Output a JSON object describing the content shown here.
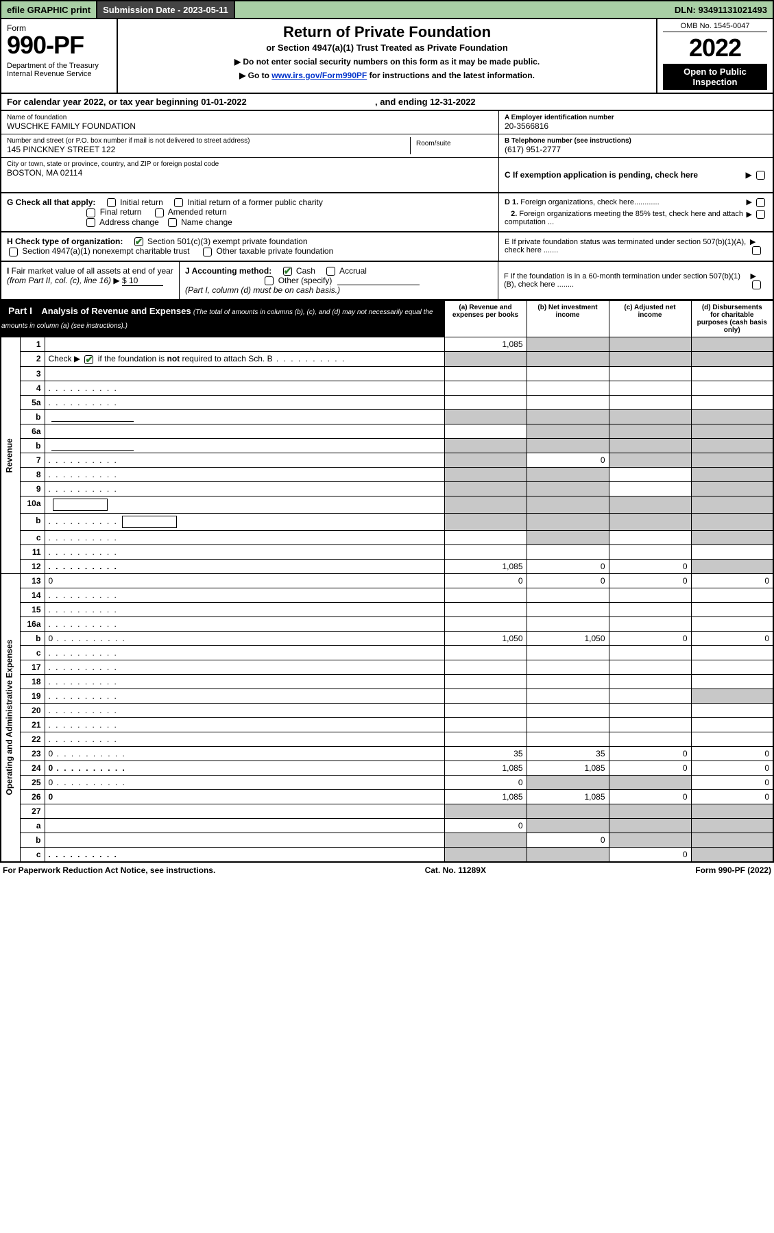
{
  "colors": {
    "topbar_bg": "#a9cfa5",
    "dark_bg": "#444444",
    "black": "#000000",
    "white": "#ffffff",
    "shaded": "#c8c8c8",
    "check_green": "#2a7a2a",
    "link": "#0033cc"
  },
  "topbar": {
    "efile": "efile GRAPHIC print",
    "subdate": "Submission Date - 2023-05-11",
    "dln": "DLN: 93491131021493"
  },
  "header": {
    "form_label": "Form",
    "form_num": "990-PF",
    "dept": "Department of the Treasury\nInternal Revenue Service",
    "title": "Return of Private Foundation",
    "subtitle": "or Section 4947(a)(1) Trust Treated as Private Foundation",
    "instr1": "▶ Do not enter social security numbers on this form as it may be made public.",
    "instr2_pre": "▶ Go to ",
    "instr2_link": "www.irs.gov/Form990PF",
    "instr2_post": " for instructions and the latest information.",
    "omb": "OMB No. 1545-0047",
    "year": "2022",
    "open": "Open to Public Inspection"
  },
  "calendar": {
    "text_pre": "For calendar year 2022, or tax year beginning ",
    "begin": "01-01-2022",
    "mid": " , and ending ",
    "end": "12-31-2022"
  },
  "info": {
    "name_label": "Name of foundation",
    "name": "WUSCHKE FAMILY FOUNDATION",
    "addr_label": "Number and street (or P.O. box number if mail is not delivered to street address)",
    "addr": "145 PINCKNEY STREET 122",
    "room_label": "Room/suite",
    "city_label": "City or town, state or province, country, and ZIP or foreign postal code",
    "city": "BOSTON, MA  02114",
    "ein_label": "A Employer identification number",
    "ein": "20-3566816",
    "phone_label": "B Telephone number (see instructions)",
    "phone": "(617) 951-2777",
    "c_label": "C If exemption application is pending, check here"
  },
  "checks": {
    "g_label": "G Check all that apply:",
    "g_opts": [
      "Initial return",
      "Initial return of a former public charity",
      "Final return",
      "Amended return",
      "Address change",
      "Name change"
    ],
    "h_label": "H Check type of organization:",
    "h_opt1": "Section 501(c)(3) exempt private foundation",
    "h_opt2": "Section 4947(a)(1) nonexempt charitable trust",
    "h_opt3": "Other taxable private foundation",
    "d1": "D 1. Foreign organizations, check here............",
    "d2": "2. Foreign organizations meeting the 85% test, check here and attach computation ...",
    "e": "E  If private foundation status was terminated under section 507(b)(1)(A), check here .......",
    "i_label": "I Fair market value of all assets at end of year (from Part II, col. (c), line 16)",
    "i_val": "$  10",
    "j_label": "J Accounting method:",
    "j_cash": "Cash",
    "j_accrual": "Accrual",
    "j_other": "Other (specify)",
    "j_note": "(Part I, column (d) must be on cash basis.)",
    "f": "F  If the foundation is in a 60-month termination under section 507(b)(1)(B), check here ........"
  },
  "part1": {
    "label": "Part I",
    "title": "Analysis of Revenue and Expenses",
    "note": "(The total of amounts in columns (b), (c), and (d) may not necessarily equal the amounts in column (a) (see instructions).)",
    "col_a": "(a)  Revenue and expenses per books",
    "col_b": "(b)  Net investment income",
    "col_c": "(c)  Adjusted net income",
    "col_d": "(d)  Disbursements for charitable purposes (cash basis only)",
    "side_rev": "Revenue",
    "side_exp": "Operating and Administrative Expenses",
    "rows": [
      {
        "n": "1",
        "d": "",
        "a": "1,085",
        "b": "",
        "c": "",
        "shade": [
          "b",
          "c",
          "d"
        ]
      },
      {
        "n": "2",
        "d": "",
        "a": "",
        "b": "",
        "c": "",
        "full_shade": true,
        "dots": true
      },
      {
        "n": "3",
        "d": "",
        "a": "",
        "b": "",
        "c": ""
      },
      {
        "n": "4",
        "d": "",
        "a": "",
        "b": "",
        "c": "",
        "dots": true
      },
      {
        "n": "5a",
        "d": "",
        "a": "",
        "b": "",
        "c": "",
        "dots": true
      },
      {
        "n": "b",
        "d": "",
        "a": "",
        "b": "",
        "c": "",
        "inline_line": true,
        "shade": [
          "a",
          "b",
          "c",
          "d"
        ]
      },
      {
        "n": "6a",
        "d": "",
        "a": "",
        "b": "",
        "c": "",
        "shade": [
          "b",
          "c",
          "d"
        ]
      },
      {
        "n": "b",
        "d": "",
        "a": "",
        "b": "",
        "c": "",
        "inline_line": true,
        "shade": [
          "a",
          "b",
          "c",
          "d"
        ]
      },
      {
        "n": "7",
        "d": "",
        "a": "",
        "b": "0",
        "c": "",
        "dots": true,
        "shade": [
          "a",
          "c",
          "d"
        ]
      },
      {
        "n": "8",
        "d": "",
        "a": "",
        "b": "",
        "c": "",
        "dots": true,
        "shade": [
          "a",
          "b",
          "d"
        ]
      },
      {
        "n": "9",
        "d": "",
        "a": "",
        "b": "",
        "c": "",
        "dots": true,
        "shade": [
          "a",
          "b",
          "d"
        ]
      },
      {
        "n": "10a",
        "d": "",
        "a": "",
        "b": "",
        "c": "",
        "inline_box": true,
        "shade": [
          "a",
          "b",
          "c",
          "d"
        ]
      },
      {
        "n": "b",
        "d": "",
        "a": "",
        "b": "",
        "c": "",
        "dots": true,
        "inline_box": true,
        "shade": [
          "a",
          "b",
          "c",
          "d"
        ]
      },
      {
        "n": "c",
        "d": "",
        "a": "",
        "b": "",
        "c": "",
        "dots": true,
        "shade": [
          "b",
          "d"
        ]
      },
      {
        "n": "11",
        "d": "",
        "a": "",
        "b": "",
        "c": "",
        "dots": true
      },
      {
        "n": "12",
        "d": "",
        "a": "1,085",
        "b": "0",
        "c": "0",
        "bold": true,
        "dots": true,
        "shade": [
          "d"
        ]
      }
    ],
    "exp_rows": [
      {
        "n": "13",
        "d": "0",
        "a": "0",
        "b": "0",
        "c": "0"
      },
      {
        "n": "14",
        "d": "",
        "a": "",
        "b": "",
        "c": "",
        "dots": true
      },
      {
        "n": "15",
        "d": "",
        "a": "",
        "b": "",
        "c": "",
        "dots": true
      },
      {
        "n": "16a",
        "d": "",
        "a": "",
        "b": "",
        "c": "",
        "dots": true
      },
      {
        "n": "b",
        "d": "0",
        "a": "1,050",
        "b": "1,050",
        "c": "0",
        "dots": true
      },
      {
        "n": "c",
        "d": "",
        "a": "",
        "b": "",
        "c": "",
        "dots": true
      },
      {
        "n": "17",
        "d": "",
        "a": "",
        "b": "",
        "c": "",
        "dots": true
      },
      {
        "n": "18",
        "d": "",
        "a": "",
        "b": "",
        "c": "",
        "dots": true
      },
      {
        "n": "19",
        "d": "",
        "a": "",
        "b": "",
        "c": "",
        "dots": true,
        "shade": [
          "d"
        ]
      },
      {
        "n": "20",
        "d": "",
        "a": "",
        "b": "",
        "c": "",
        "dots": true
      },
      {
        "n": "21",
        "d": "",
        "a": "",
        "b": "",
        "c": "",
        "dots": true
      },
      {
        "n": "22",
        "d": "",
        "a": "",
        "b": "",
        "c": "",
        "dots": true
      },
      {
        "n": "23",
        "d": "0",
        "a": "35",
        "b": "35",
        "c": "0",
        "dots": true
      },
      {
        "n": "24",
        "d": "0",
        "a": "1,085",
        "b": "1,085",
        "c": "0",
        "bold": true,
        "dots": true
      },
      {
        "n": "25",
        "d": "0",
        "a": "0",
        "b": "",
        "c": "",
        "dots": true,
        "shade": [
          "b",
          "c"
        ]
      },
      {
        "n": "26",
        "d": "0",
        "a": "1,085",
        "b": "1,085",
        "c": "0",
        "bold": true
      },
      {
        "n": "27",
        "d": "",
        "a": "",
        "b": "",
        "c": "",
        "shade": [
          "a",
          "b",
          "c",
          "d"
        ]
      },
      {
        "n": "a",
        "d": "",
        "a": "0",
        "b": "",
        "c": "",
        "bold": true,
        "shade": [
          "b",
          "c",
          "d"
        ]
      },
      {
        "n": "b",
        "d": "",
        "a": "",
        "b": "0",
        "c": "",
        "bold": true,
        "shade": [
          "a",
          "c",
          "d"
        ]
      },
      {
        "n": "c",
        "d": "",
        "a": "",
        "b": "",
        "c": "0",
        "bold": true,
        "dots": true,
        "shade": [
          "a",
          "b",
          "d"
        ]
      }
    ]
  },
  "footer": {
    "left": "For Paperwork Reduction Act Notice, see instructions.",
    "mid": "Cat. No. 11289X",
    "right": "Form 990-PF (2022)"
  }
}
